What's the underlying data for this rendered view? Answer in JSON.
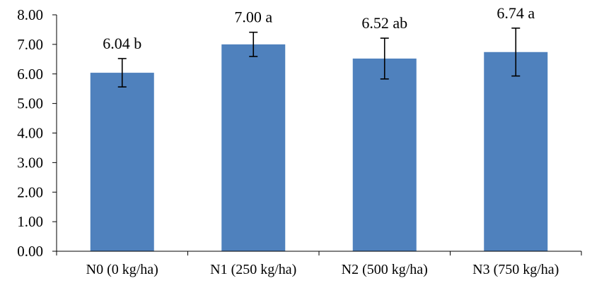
{
  "chart_data": {
    "type": "bar",
    "title": "",
    "xlabel": "",
    "ylabel": "",
    "categories": [
      "N0 (0 kg/ha)",
      "N1 (250 kg/ha)",
      "N2 (500 kg/ha)",
      "N3 (750 kg/ha)"
    ],
    "values": [
      6.04,
      7.0,
      6.52,
      6.74
    ],
    "error": [
      0.48,
      0.41,
      0.69,
      0.81
    ],
    "data_labels": [
      "6.04 b",
      "7.00 a",
      "6.52 ab",
      "6.74 a"
    ],
    "ylim": [
      0,
      8
    ],
    "y_ticks": [
      0,
      1,
      2,
      3,
      4,
      5,
      6,
      7,
      8
    ],
    "y_tick_labels": [
      "0.00",
      "1.00",
      "2.00",
      "3.00",
      "4.00",
      "5.00",
      "6.00",
      "7.00",
      "8.00"
    ],
    "grid": false,
    "legend": "none",
    "bar_color": "#4F81BD"
  }
}
